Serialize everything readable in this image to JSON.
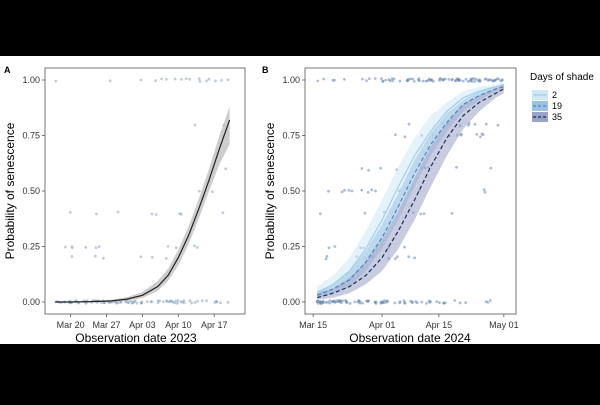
{
  "chart_data": [
    {
      "type": "line",
      "panel_label": "A",
      "xlabel": "Observation date 2023",
      "ylabel": "Probability of senescence",
      "x_unit": "date",
      "x_ticks": [
        "2023-03-20",
        "2023-03-27",
        "2023-04-03",
        "2023-04-10",
        "2023-04-17"
      ],
      "x_tick_labels": [
        "Mar 20",
        "Mar 27",
        "Apr 03",
        "Apr 10",
        "Apr 17"
      ],
      "xlim": [
        "2023-03-15",
        "2023-04-23"
      ],
      "ylim": [
        0,
        1
      ],
      "y_ticks": [
        0,
        0.25,
        0.5,
        0.75,
        1
      ],
      "y_tick_labels": [
        "0.00",
        "0.25",
        "0.50",
        "0.75",
        "1.00"
      ],
      "grid": false,
      "colors": {
        "line": "#222222",
        "band": "#b8b8b8",
        "points": "#8aa2bf"
      },
      "series": [
        {
          "x": [
            "2023-03-17",
            "2023-03-20",
            "2023-03-24",
            "2023-03-28",
            "2023-03-31",
            "2023-04-03",
            "2023-04-06",
            "2023-04-08",
            "2023-04-10",
            "2023-04-12",
            "2023-04-14",
            "2023-04-16",
            "2023-04-18",
            "2023-04-20"
          ],
          "y": [
            0.0,
            0.0,
            0.002,
            0.005,
            0.013,
            0.03,
            0.07,
            0.12,
            0.2,
            0.3,
            0.42,
            0.55,
            0.69,
            0.82
          ],
          "lower": [
            0.0,
            0.0,
            0.0,
            0.002,
            0.006,
            0.018,
            0.05,
            0.095,
            0.165,
            0.26,
            0.375,
            0.5,
            0.62,
            0.71
          ],
          "upper": [
            0.0,
            0.002,
            0.005,
            0.01,
            0.022,
            0.045,
            0.095,
            0.15,
            0.235,
            0.34,
            0.465,
            0.6,
            0.75,
            0.88
          ]
        }
      ]
    },
    {
      "type": "line",
      "panel_label": "B",
      "xlabel": "Observation date 2024",
      "ylabel": "Probability of senescence",
      "x_unit": "date",
      "x_ticks": [
        "2024-03-15",
        "2024-04-01",
        "2024-04-15",
        "2024-05-01"
      ],
      "x_tick_labels": [
        "Mar 15",
        "Apr 01",
        "Apr 15",
        "May 01"
      ],
      "xlim": [
        "2024-03-13",
        "2024-05-04"
      ],
      "ylim": [
        0,
        1
      ],
      "y_ticks": [
        0,
        0.25,
        0.5,
        0.75,
        1
      ],
      "y_tick_labels": [
        "0.00",
        "0.25",
        "0.50",
        "0.75",
        "1.00"
      ],
      "grid": false,
      "legend": {
        "title": "Days of shade",
        "placement": "right",
        "entries": [
          {
            "label": "2",
            "color": "#9fd0ea",
            "band": "#cfe8f4",
            "dash": "solid"
          },
          {
            "label": "19",
            "color": "#4c86c4",
            "band": "#9cc2e3",
            "dash": "dash"
          },
          {
            "label": "35",
            "color": "#1d2b5c",
            "band": "#9aa3c8",
            "dash": "dash"
          }
        ]
      },
      "series": [
        {
          "name": "2",
          "x": [
            "2024-03-16",
            "2024-03-20",
            "2024-03-24",
            "2024-03-28",
            "2024-04-01",
            "2024-04-05",
            "2024-04-09",
            "2024-04-13",
            "2024-04-17",
            "2024-04-21",
            "2024-04-25",
            "2024-04-29",
            "2024-05-01"
          ],
          "y": [
            0.04,
            0.08,
            0.14,
            0.24,
            0.37,
            0.52,
            0.66,
            0.77,
            0.86,
            0.92,
            0.95,
            0.97,
            0.98
          ],
          "lower": [
            0.02,
            0.05,
            0.09,
            0.17,
            0.28,
            0.42,
            0.57,
            0.7,
            0.81,
            0.88,
            0.93,
            0.96,
            0.97
          ],
          "upper": [
            0.07,
            0.12,
            0.2,
            0.32,
            0.46,
            0.61,
            0.74,
            0.84,
            0.9,
            0.95,
            0.97,
            0.98,
            0.99
          ]
        },
        {
          "name": "19",
          "x": [
            "2024-03-16",
            "2024-03-20",
            "2024-03-24",
            "2024-03-28",
            "2024-04-01",
            "2024-04-05",
            "2024-04-09",
            "2024-04-13",
            "2024-04-17",
            "2024-04-21",
            "2024-04-25",
            "2024-04-29",
            "2024-05-01"
          ],
          "y": [
            0.03,
            0.06,
            0.1,
            0.18,
            0.29,
            0.43,
            0.58,
            0.71,
            0.81,
            0.89,
            0.93,
            0.96,
            0.97
          ],
          "lower": [
            0.02,
            0.04,
            0.07,
            0.14,
            0.24,
            0.37,
            0.52,
            0.66,
            0.77,
            0.86,
            0.91,
            0.95,
            0.96
          ],
          "upper": [
            0.05,
            0.08,
            0.14,
            0.23,
            0.35,
            0.49,
            0.64,
            0.76,
            0.85,
            0.91,
            0.95,
            0.97,
            0.98
          ]
        },
        {
          "name": "35",
          "x": [
            "2024-03-16",
            "2024-03-20",
            "2024-03-24",
            "2024-03-28",
            "2024-04-01",
            "2024-04-05",
            "2024-04-09",
            "2024-04-13",
            "2024-04-17",
            "2024-04-21",
            "2024-04-25",
            "2024-04-29",
            "2024-05-01"
          ],
          "y": [
            0.02,
            0.04,
            0.07,
            0.12,
            0.2,
            0.32,
            0.46,
            0.61,
            0.74,
            0.84,
            0.9,
            0.94,
            0.96
          ],
          "lower": [
            0.01,
            0.02,
            0.04,
            0.08,
            0.14,
            0.24,
            0.37,
            0.52,
            0.66,
            0.78,
            0.86,
            0.92,
            0.94
          ],
          "upper": [
            0.04,
            0.06,
            0.11,
            0.18,
            0.28,
            0.41,
            0.56,
            0.7,
            0.81,
            0.89,
            0.93,
            0.96,
            0.98
          ]
        }
      ]
    }
  ]
}
